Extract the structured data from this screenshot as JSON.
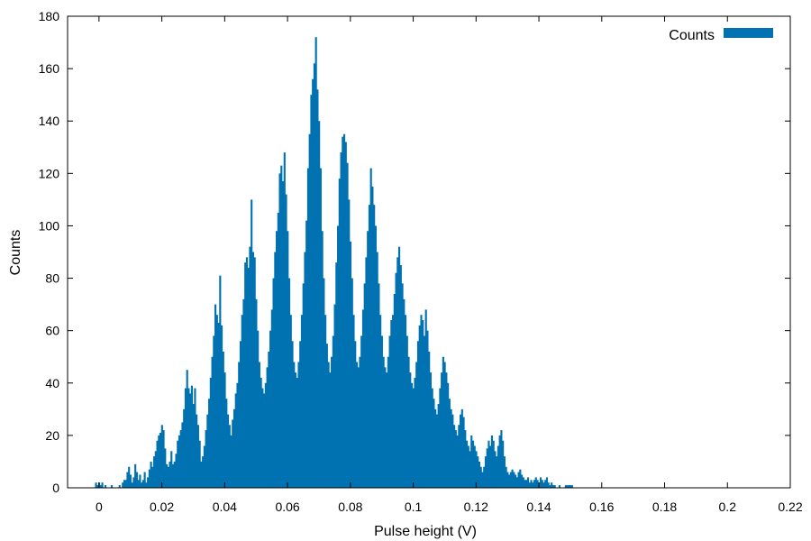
{
  "chart_data": {
    "type": "bar",
    "title": "",
    "xlabel": "Pulse height (V)",
    "ylabel": "Counts",
    "xlim": [
      -0.01,
      0.22
    ],
    "ylim": [
      0,
      180
    ],
    "x_ticks": [
      0,
      0.02,
      0.04,
      0.06,
      0.08,
      0.1,
      0.12,
      0.14,
      0.16,
      0.18,
      0.2,
      0.22
    ],
    "x_tick_labels": [
      "0",
      "0.02",
      "0.04",
      "0.06",
      "0.08",
      "0.1",
      "0.12",
      "0.14",
      "0.16",
      "0.18",
      "0.2",
      "0.22"
    ],
    "y_ticks": [
      0,
      20,
      40,
      60,
      80,
      100,
      120,
      140,
      160,
      180
    ],
    "y_tick_labels": [
      "0",
      "20",
      "40",
      "60",
      "80",
      "100",
      "120",
      "140",
      "160",
      "180"
    ],
    "grid": false,
    "legend": {
      "position": "top-right",
      "entries": [
        "Counts"
      ]
    },
    "bin_width": 0.0005,
    "series": [
      {
        "name": "Counts",
        "color": "#0072b2",
        "points": [
          [
            -0.001,
            2
          ],
          [
            -0.0005,
            1
          ],
          [
            0,
            2
          ],
          [
            0.0005,
            1
          ],
          [
            0.001,
            2
          ],
          [
            0.0015,
            0
          ],
          [
            0.002,
            1
          ],
          [
            0.004,
            1
          ],
          [
            0.0065,
            1
          ],
          [
            0.0075,
            2
          ],
          [
            0.008,
            3
          ],
          [
            0.0085,
            3
          ],
          [
            0.009,
            6
          ],
          [
            0.0095,
            8
          ],
          [
            0.01,
            5
          ],
          [
            0.0105,
            2
          ],
          [
            0.011,
            4
          ],
          [
            0.0115,
            9
          ],
          [
            0.012,
            6
          ],
          [
            0.0125,
            3
          ],
          [
            0.013,
            5
          ],
          [
            0.0135,
            2
          ],
          [
            0.014,
            3
          ],
          [
            0.0145,
            6
          ],
          [
            0.015,
            2
          ],
          [
            0.0155,
            4
          ],
          [
            0.016,
            7
          ],
          [
            0.0165,
            10
          ],
          [
            0.017,
            8
          ],
          [
            0.0175,
            12
          ],
          [
            0.018,
            14
          ],
          [
            0.0185,
            18
          ],
          [
            0.019,
            20
          ],
          [
            0.0195,
            21
          ],
          [
            0.02,
            24
          ],
          [
            0.0205,
            22
          ],
          [
            0.021,
            15
          ],
          [
            0.0215,
            9
          ],
          [
            0.022,
            8
          ],
          [
            0.0225,
            10
          ],
          [
            0.023,
            14
          ],
          [
            0.0235,
            9
          ],
          [
            0.024,
            10
          ],
          [
            0.0245,
            13
          ],
          [
            0.025,
            18
          ],
          [
            0.0255,
            20
          ],
          [
            0.026,
            22
          ],
          [
            0.0265,
            25
          ],
          [
            0.027,
            30
          ],
          [
            0.0275,
            38
          ],
          [
            0.028,
            45
          ],
          [
            0.0285,
            38
          ],
          [
            0.029,
            36
          ],
          [
            0.0295,
            39
          ],
          [
            0.03,
            32
          ],
          [
            0.0305,
            38
          ],
          [
            0.031,
            28
          ],
          [
            0.0315,
            24
          ],
          [
            0.032,
            18
          ],
          [
            0.0325,
            10
          ],
          [
            0.033,
            12
          ],
          [
            0.0335,
            16
          ],
          [
            0.034,
            22
          ],
          [
            0.0345,
            28
          ],
          [
            0.035,
            34
          ],
          [
            0.0355,
            42
          ],
          [
            0.036,
            50
          ],
          [
            0.0365,
            58
          ],
          [
            0.037,
            70
          ],
          [
            0.0375,
            66
          ],
          [
            0.038,
            63
          ],
          [
            0.0385,
            81
          ],
          [
            0.039,
            62
          ],
          [
            0.0395,
            52
          ],
          [
            0.04,
            44
          ],
          [
            0.0405,
            34
          ],
          [
            0.041,
            28
          ],
          [
            0.0415,
            24
          ],
          [
            0.042,
            20
          ],
          [
            0.0425,
            26
          ],
          [
            0.043,
            30
          ],
          [
            0.0435,
            36
          ],
          [
            0.044,
            40
          ],
          [
            0.0445,
            48
          ],
          [
            0.045,
            56
          ],
          [
            0.0455,
            66
          ],
          [
            0.046,
            72
          ],
          [
            0.0465,
            86
          ],
          [
            0.047,
            88
          ],
          [
            0.0475,
            84
          ],
          [
            0.048,
            92
          ],
          [
            0.0485,
            110
          ],
          [
            0.049,
            90
          ],
          [
            0.0495,
            88
          ],
          [
            0.05,
            72
          ],
          [
            0.0505,
            60
          ],
          [
            0.051,
            48
          ],
          [
            0.0515,
            42
          ],
          [
            0.052,
            38
          ],
          [
            0.0525,
            36
          ],
          [
            0.053,
            40
          ],
          [
            0.0535,
            46
          ],
          [
            0.054,
            52
          ],
          [
            0.0545,
            60
          ],
          [
            0.055,
            68
          ],
          [
            0.0555,
            80
          ],
          [
            0.056,
            90
          ],
          [
            0.0565,
            98
          ],
          [
            0.057,
            105
          ],
          [
            0.0575,
            120
          ],
          [
            0.058,
            123
          ],
          [
            0.0585,
            117
          ],
          [
            0.059,
            128
          ],
          [
            0.0595,
            112
          ],
          [
            0.06,
            98
          ],
          [
            0.0605,
            80
          ],
          [
            0.061,
            66
          ],
          [
            0.0615,
            56
          ],
          [
            0.062,
            48
          ],
          [
            0.0625,
            44
          ],
          [
            0.063,
            42
          ],
          [
            0.0635,
            48
          ],
          [
            0.064,
            56
          ],
          [
            0.0645,
            66
          ],
          [
            0.065,
            78
          ],
          [
            0.0655,
            90
          ],
          [
            0.066,
            102
          ],
          [
            0.0665,
            122
          ],
          [
            0.067,
            135
          ],
          [
            0.0675,
            150
          ],
          [
            0.068,
            156
          ],
          [
            0.0685,
            162
          ],
          [
            0.069,
            172
          ],
          [
            0.0695,
            152
          ],
          [
            0.07,
            140
          ],
          [
            0.0705,
            122
          ],
          [
            0.071,
            98
          ],
          [
            0.0715,
            80
          ],
          [
            0.072,
            66
          ],
          [
            0.0725,
            55
          ],
          [
            0.073,
            48
          ],
          [
            0.0735,
            44
          ],
          [
            0.074,
            50
          ],
          [
            0.0745,
            58
          ],
          [
            0.075,
            70
          ],
          [
            0.0755,
            86
          ],
          [
            0.076,
            100
          ],
          [
            0.0765,
            118
          ],
          [
            0.077,
            128
          ],
          [
            0.0775,
            134
          ],
          [
            0.078,
            135
          ],
          [
            0.0785,
            132
          ],
          [
            0.079,
            124
          ],
          [
            0.0795,
            110
          ],
          [
            0.08,
            94
          ],
          [
            0.0805,
            80
          ],
          [
            0.081,
            66
          ],
          [
            0.0815,
            56
          ],
          [
            0.082,
            48
          ],
          [
            0.0825,
            46
          ],
          [
            0.083,
            50
          ],
          [
            0.0835,
            58
          ],
          [
            0.084,
            68
          ],
          [
            0.0845,
            78
          ],
          [
            0.085,
            88
          ],
          [
            0.0855,
            98
          ],
          [
            0.086,
            108
          ],
          [
            0.0865,
            122
          ],
          [
            0.087,
            115
          ],
          [
            0.0875,
            108
          ],
          [
            0.088,
            100
          ],
          [
            0.0885,
            90
          ],
          [
            0.089,
            78
          ],
          [
            0.0895,
            66
          ],
          [
            0.09,
            58
          ],
          [
            0.0905,
            50
          ],
          [
            0.091,
            46
          ],
          [
            0.0915,
            44
          ],
          [
            0.092,
            50
          ],
          [
            0.0925,
            58
          ],
          [
            0.093,
            64
          ],
          [
            0.0935,
            66
          ],
          [
            0.094,
            74
          ],
          [
            0.0945,
            82
          ],
          [
            0.095,
            88
          ],
          [
            0.0955,
            92
          ],
          [
            0.096,
            85
          ],
          [
            0.0965,
            78
          ],
          [
            0.097,
            72
          ],
          [
            0.0975,
            66
          ],
          [
            0.098,
            58
          ],
          [
            0.0985,
            50
          ],
          [
            0.099,
            44
          ],
          [
            0.0995,
            40
          ],
          [
            0.1,
            38
          ],
          [
            0.1005,
            42
          ],
          [
            0.101,
            48
          ],
          [
            0.1015,
            56
          ],
          [
            0.102,
            62
          ],
          [
            0.1025,
            66
          ],
          [
            0.103,
            64
          ],
          [
            0.1035,
            58
          ],
          [
            0.104,
            68
          ],
          [
            0.1045,
            60
          ],
          [
            0.105,
            52
          ],
          [
            0.1055,
            44
          ],
          [
            0.106,
            38
          ],
          [
            0.1065,
            34
          ],
          [
            0.107,
            30
          ],
          [
            0.1075,
            28
          ],
          [
            0.108,
            32
          ],
          [
            0.1085,
            38
          ],
          [
            0.109,
            44
          ],
          [
            0.1095,
            50
          ],
          [
            0.11,
            48
          ],
          [
            0.1105,
            44
          ],
          [
            0.111,
            40
          ],
          [
            0.1115,
            34
          ],
          [
            0.112,
            30
          ],
          [
            0.1125,
            28
          ],
          [
            0.113,
            24
          ],
          [
            0.1135,
            22
          ],
          [
            0.114,
            20
          ],
          [
            0.1145,
            24
          ],
          [
            0.115,
            28
          ],
          [
            0.1155,
            30
          ],
          [
            0.116,
            27
          ],
          [
            0.1165,
            22
          ],
          [
            0.117,
            18
          ],
          [
            0.1175,
            16
          ],
          [
            0.118,
            14
          ],
          [
            0.1185,
            20
          ],
          [
            0.119,
            18
          ],
          [
            0.1195,
            16
          ],
          [
            0.12,
            14
          ],
          [
            0.1205,
            12
          ],
          [
            0.121,
            10
          ],
          [
            0.1215,
            8
          ],
          [
            0.122,
            6
          ],
          [
            0.1225,
            8
          ],
          [
            0.123,
            12
          ],
          [
            0.1235,
            15
          ],
          [
            0.124,
            18
          ],
          [
            0.1245,
            16
          ],
          [
            0.125,
            20
          ],
          [
            0.1255,
            18
          ],
          [
            0.126,
            14
          ],
          [
            0.1265,
            12
          ],
          [
            0.127,
            16
          ],
          [
            0.1275,
            20
          ],
          [
            0.128,
            22
          ],
          [
            0.1285,
            18
          ],
          [
            0.129,
            12
          ],
          [
            0.1295,
            8
          ],
          [
            0.13,
            6
          ],
          [
            0.1305,
            5
          ],
          [
            0.131,
            6
          ],
          [
            0.1315,
            7
          ],
          [
            0.132,
            6
          ],
          [
            0.1325,
            5
          ],
          [
            0.133,
            4
          ],
          [
            0.1335,
            6
          ],
          [
            0.134,
            7
          ],
          [
            0.1345,
            5
          ],
          [
            0.135,
            4
          ],
          [
            0.1355,
            3
          ],
          [
            0.136,
            3
          ],
          [
            0.1365,
            4
          ],
          [
            0.137,
            2
          ],
          [
            0.1375,
            3
          ],
          [
            0.138,
            2
          ],
          [
            0.1385,
            3
          ],
          [
            0.139,
            4
          ],
          [
            0.1395,
            3
          ],
          [
            0.14,
            2
          ],
          [
            0.1405,
            4
          ],
          [
            0.141,
            3
          ],
          [
            0.1415,
            2
          ],
          [
            0.142,
            3
          ],
          [
            0.1425,
            4
          ],
          [
            0.143,
            2
          ],
          [
            0.1435,
            1
          ],
          [
            0.144,
            2
          ],
          [
            0.1445,
            1
          ],
          [
            0.145,
            1
          ],
          [
            0.1455,
            0
          ],
          [
            0.146,
            0
          ],
          [
            0.1465,
            1
          ],
          [
            0.147,
            0
          ],
          [
            0.1475,
            0
          ],
          [
            0.148,
            0
          ],
          [
            0.1485,
            1
          ],
          [
            0.149,
            1
          ],
          [
            0.1495,
            1
          ],
          [
            0.15,
            1
          ],
          [
            0.1505,
            1
          ]
        ]
      }
    ]
  }
}
